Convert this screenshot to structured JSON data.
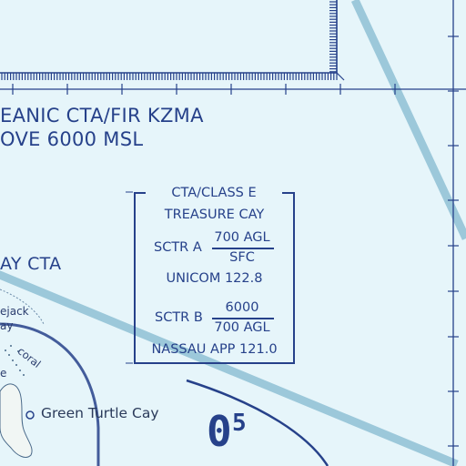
{
  "labels": {
    "oceanic_line1": "EANIC CTA/FIR KZMA",
    "oceanic_line2": "OVE 6000 MSL",
    "cay_cta": "AY CTA",
    "cay_frag1": "ejack",
    "cay_frag2": "ay",
    "coral": "coral",
    "e_frag": "e",
    "green_turtle": "Green Turtle Cay",
    "runway_main": "0",
    "runway_sup": "5"
  },
  "airspace_box": {
    "title": "CTA/CLASS E",
    "name": "TREASURE CAY",
    "sctr_a_label": "SCTR A",
    "sctr_a_top": "700 AGL",
    "sctr_a_bottom": "SFC",
    "unicom": "UNICOM 122.8",
    "sctr_b_label": "SCTR B",
    "sctr_b_top": "6000",
    "sctr_b_bottom": "700 AGL",
    "approach": "NASSAU APP 121.0"
  },
  "colors": {
    "water": "#e6f5fa",
    "airspace_blue": "#26418a",
    "route_band": "#9cc8da",
    "land": "#f1f6f4"
  }
}
